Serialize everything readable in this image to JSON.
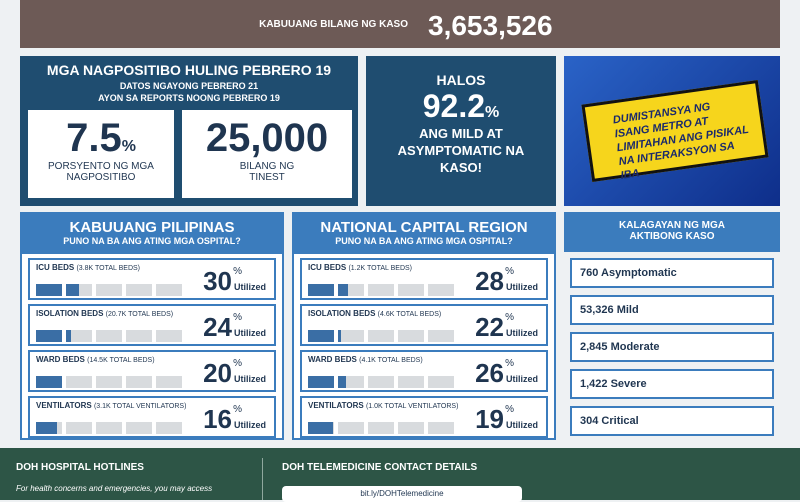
{
  "header": {
    "total_label": "KABUUANG BILANG NG KASO",
    "total": "3,653,526"
  },
  "positivity": {
    "title": "MGA NAGPOSITIBO HULING PEBRERO 19",
    "line1": "DATOS NGAYONG PEBRERO 21",
    "line2": "AYON SA REPORTS NOONG PEBRERO 19",
    "rate": "7.5",
    "rate_unit": "%",
    "rate_label": "PORSYENTO NG MGA NAGPOSITIBO",
    "tested": "25,000",
    "tested_label": "BILANG NG TINEST"
  },
  "mild": {
    "lead": "HALOS",
    "value": "92.2",
    "unit": "%",
    "text": "ANG MILD AT ASYMPTOMATIC NA KASO!"
  },
  "reminder": {
    "text": "DUMISTANSYA NG ISANG METRO AT LIMITAHAN ANG PISIKAL NA INTERAKSYON SA IBA"
  },
  "pct_symbol": "%",
  "utilized": "Utilized",
  "panels": [
    {
      "title": "KABUUANG PILIPINAS",
      "subtitle": "PUNO NA BA ANG ATING MGA OSPITAL?",
      "rows": [
        {
          "label": "ICU BEDS",
          "note": "(3.8K TOTAL BEDS)",
          "value": 30
        },
        {
          "label": "ISOLATION BEDS",
          "note": "(20.7K TOTAL BEDS)",
          "value": 24
        },
        {
          "label": "WARD BEDS",
          "note": "(14.5K TOTAL BEDS)",
          "value": 20
        },
        {
          "label": "VENTILATORS",
          "note": "(3.1K TOTAL VENTILATORS)",
          "value": 16
        }
      ]
    },
    {
      "title": "NATIONAL CAPITAL REGION",
      "subtitle": "PUNO NA BA ANG ATING MGA OSPITAL?",
      "rows": [
        {
          "label": "ICU BEDS",
          "note": "(1.2K TOTAL BEDS)",
          "value": 28
        },
        {
          "label": "ISOLATION BEDS",
          "note": "(4.6K TOTAL BEDS)",
          "value": 22
        },
        {
          "label": "WARD BEDS",
          "note": "(4.1K TOTAL BEDS)",
          "value": 26
        },
        {
          "label": "VENTILATORS",
          "note": "(1.0K TOTAL VENTILATORS)",
          "value": 19
        }
      ]
    }
  ],
  "active": {
    "title": "KALAGAYAN NG MGA AKTIBONG KASO",
    "items": [
      "760 Asymptomatic",
      "53,326 Mild",
      "2,845 Moderate",
      "1,422 Severe",
      "304 Critical"
    ]
  },
  "footer": {
    "hotlines_title": "DOH HOSPITAL HOTLINES",
    "hotlines_text": "For health concerns and emergencies, you may access",
    "tele_title": "DOH TELEMEDICINE CONTACT DETAILS",
    "tele_link": "bit.ly/DOHTelemedicine"
  }
}
